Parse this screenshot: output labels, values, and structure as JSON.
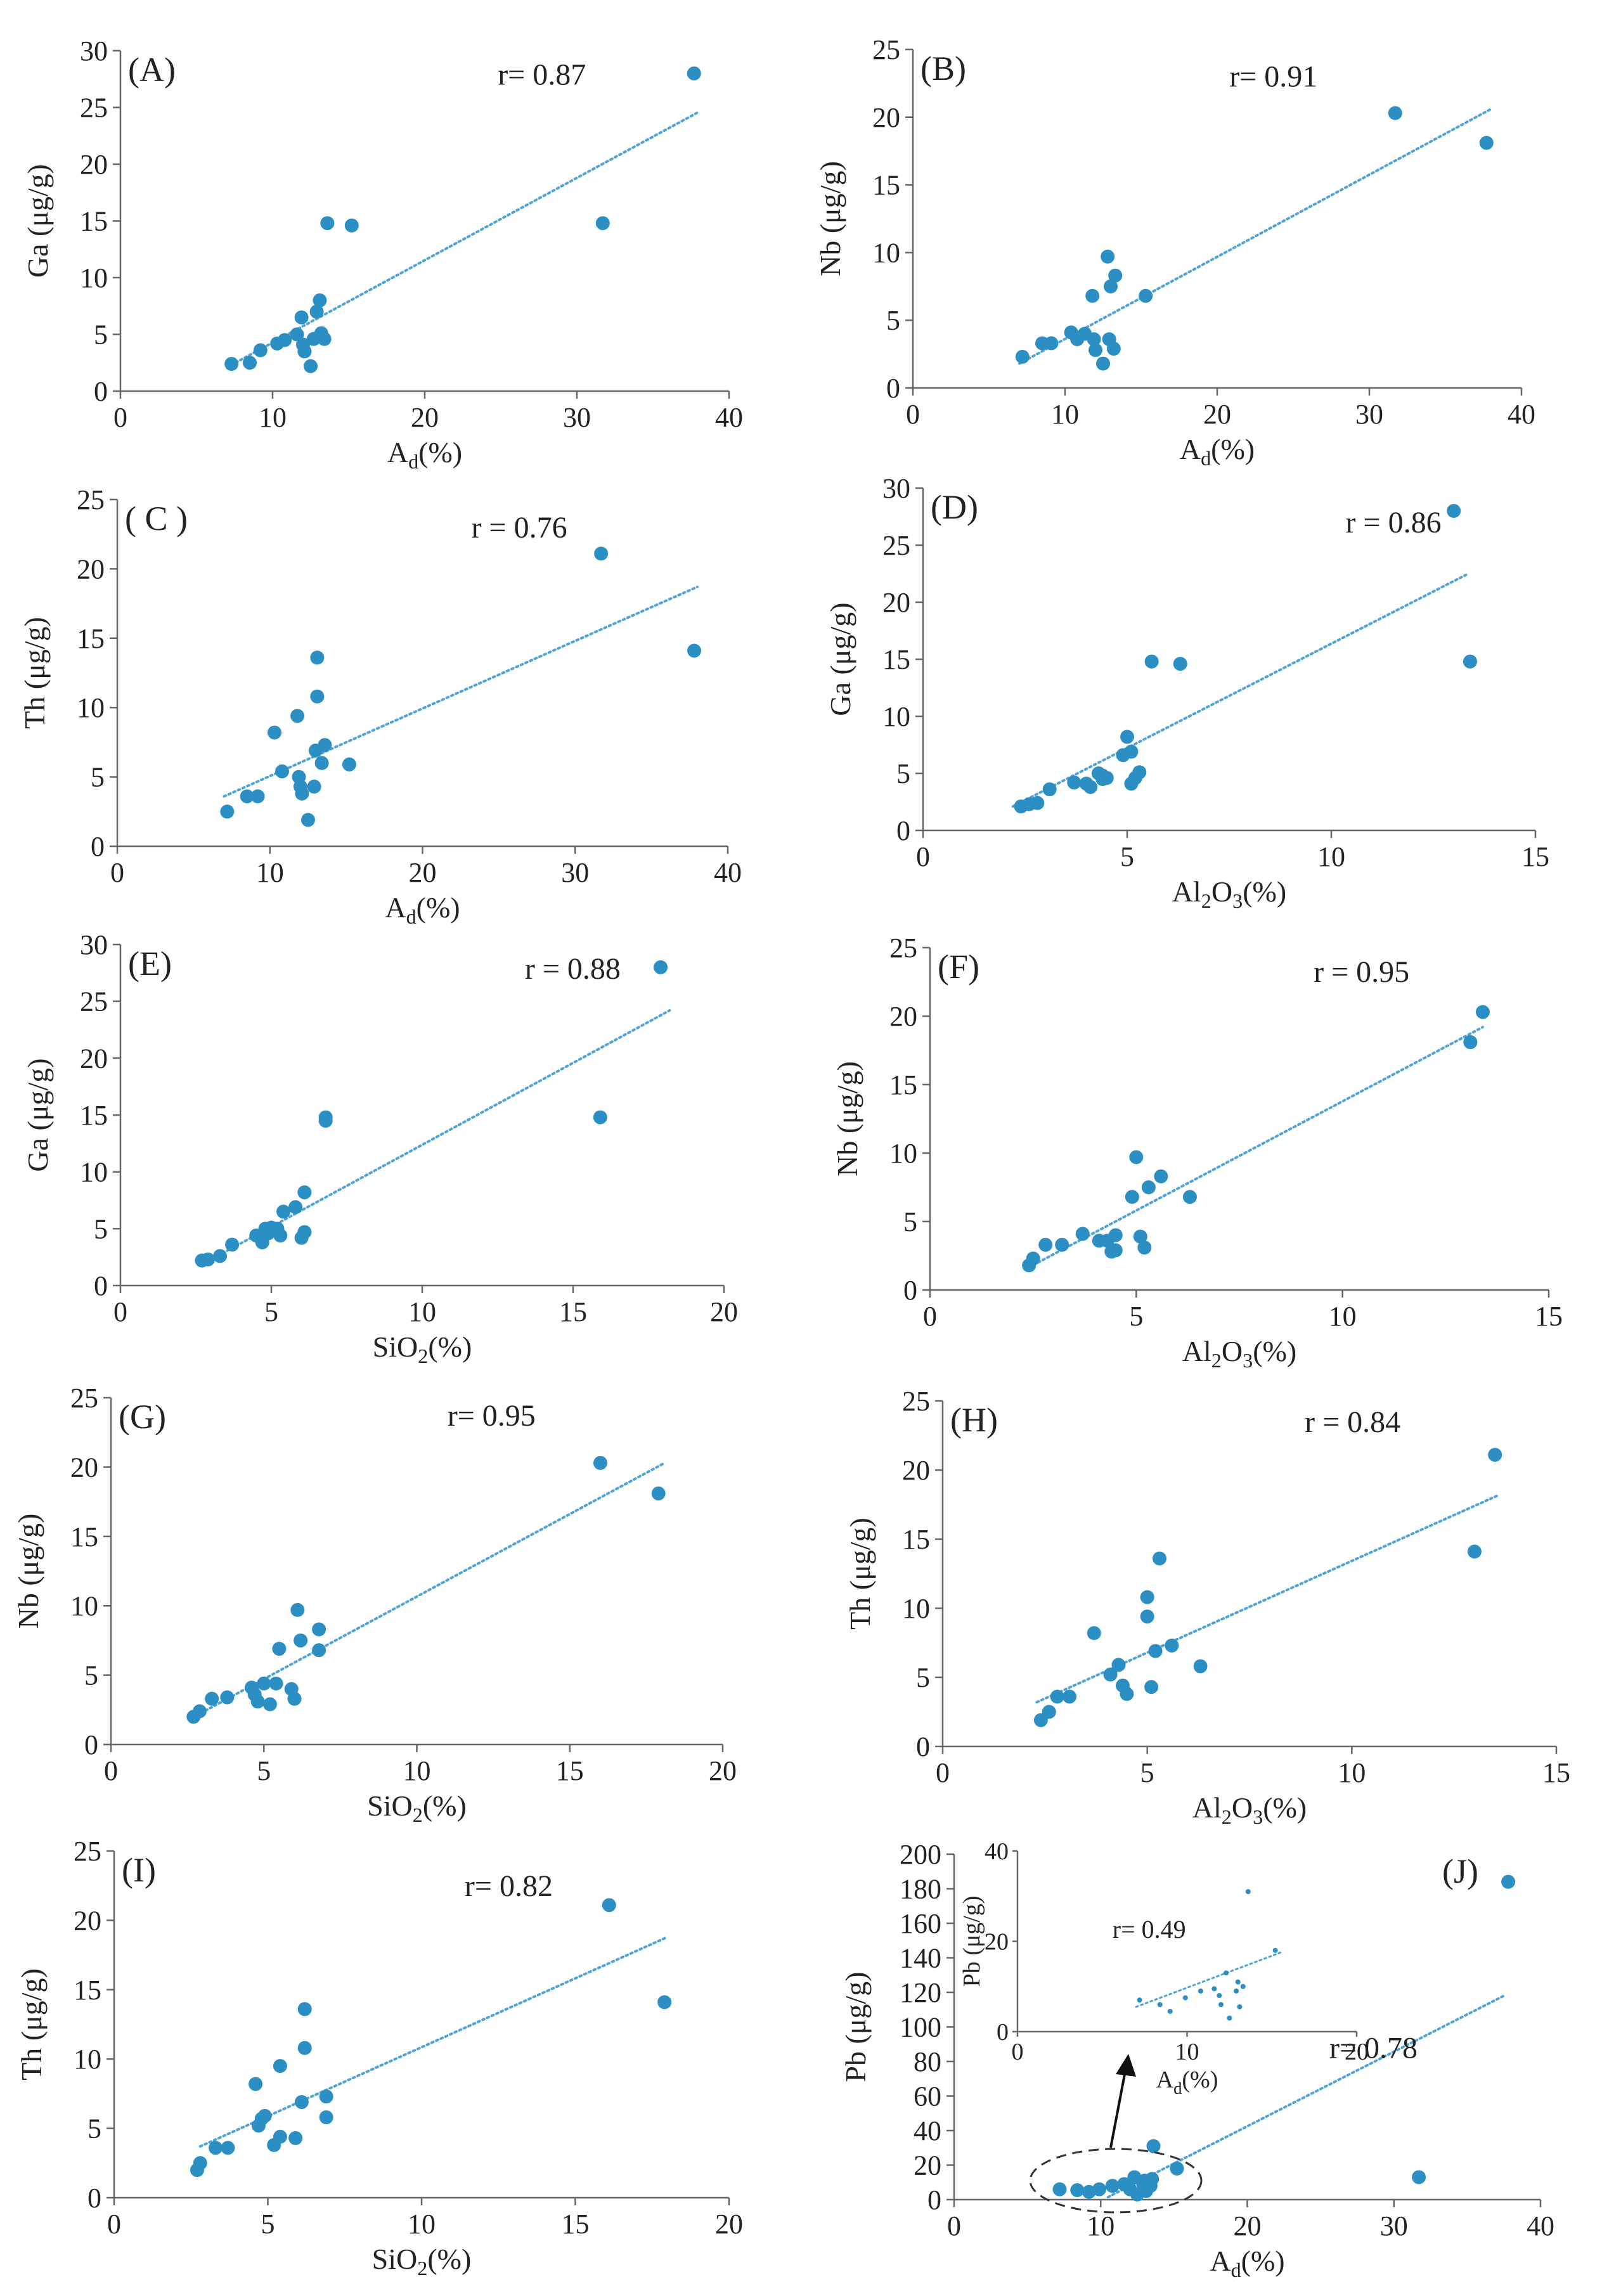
{
  "figure": {
    "caption": ""
  },
  "colors": {
    "point": "#2b8fc4",
    "trend": "#4fa3d6",
    "axis": "#666666",
    "text": "#222222"
  },
  "chart_data": [
    {
      "id": "A",
      "type": "scatter",
      "panel_label": "(A)",
      "xlabel": "Ad(%)",
      "ylabel": "Ga (μg/g)",
      "xlim": [
        0,
        40
      ],
      "ylim": [
        0,
        30
      ],
      "xticks": [
        0,
        10,
        20,
        30,
        40
      ],
      "yticks": [
        0,
        5,
        10,
        15,
        20,
        25,
        30
      ],
      "r_label": "r= 0.87",
      "trend": [
        [
          7,
          2.1
        ],
        [
          38,
          24.6
        ]
      ],
      "points": [
        [
          7.3,
          2.4
        ],
        [
          8.5,
          2.5
        ],
        [
          9.2,
          3.6
        ],
        [
          10.3,
          4.2
        ],
        [
          10.8,
          4.5
        ],
        [
          11.6,
          5.0
        ],
        [
          11.9,
          6.5
        ],
        [
          12.0,
          4.1
        ],
        [
          12.1,
          3.5
        ],
        [
          12.5,
          2.2
        ],
        [
          12.7,
          4.6
        ],
        [
          12.9,
          7.0
        ],
        [
          13.1,
          8.0
        ],
        [
          13.2,
          5.1
        ],
        [
          13.4,
          4.6
        ],
        [
          13.6,
          14.8
        ],
        [
          15.2,
          14.6
        ],
        [
          31.7,
          14.8
        ],
        [
          37.7,
          28.0
        ]
      ]
    },
    {
      "id": "B",
      "type": "scatter",
      "panel_label": "(B)",
      "xlabel": "Ad(%)",
      "ylabel": "Nb (μg/g)",
      "xlim": [
        0,
        40
      ],
      "ylim": [
        0,
        25
      ],
      "xticks": [
        0,
        10,
        20,
        30,
        40
      ],
      "yticks": [
        0,
        5,
        10,
        15,
        20,
        25
      ],
      "r_label": "r= 0.91",
      "trend": [
        [
          7,
          1.8
        ],
        [
          38,
          20.6
        ]
      ],
      "points": [
        [
          7.2,
          2.3
        ],
        [
          8.5,
          3.3
        ],
        [
          9.1,
          3.3
        ],
        [
          10.4,
          4.1
        ],
        [
          10.8,
          3.6
        ],
        [
          11.3,
          4.0
        ],
        [
          11.8,
          6.8
        ],
        [
          11.9,
          3.6
        ],
        [
          12.0,
          2.8
        ],
        [
          12.5,
          1.8
        ],
        [
          12.8,
          9.7
        ],
        [
          12.9,
          3.6
        ],
        [
          13.0,
          7.5
        ],
        [
          13.2,
          2.9
        ],
        [
          13.3,
          8.3
        ],
        [
          15.3,
          6.8
        ],
        [
          31.7,
          20.3
        ],
        [
          37.7,
          18.1
        ]
      ]
    },
    {
      "id": "C",
      "type": "scatter",
      "panel_label": "( C )",
      "xlabel": "Ad(%)",
      "ylabel": "Th (μg/g)",
      "xlim": [
        0,
        40
      ],
      "ylim": [
        0,
        25
      ],
      "xticks": [
        0,
        10,
        20,
        30,
        40
      ],
      "yticks": [
        0,
        5,
        10,
        15,
        20,
        25
      ],
      "r_label": "r = 0.76",
      "trend": [
        [
          7,
          3.6
        ],
        [
          38,
          18.7
        ]
      ],
      "points": [
        [
          7.2,
          2.5
        ],
        [
          8.5,
          3.6
        ],
        [
          9.2,
          3.6
        ],
        [
          10.3,
          8.2
        ],
        [
          10.8,
          5.4
        ],
        [
          11.8,
          9.4
        ],
        [
          11.9,
          5.0
        ],
        [
          12.0,
          4.3
        ],
        [
          12.1,
          3.8
        ],
        [
          12.5,
          1.9
        ],
        [
          12.9,
          4.3
        ],
        [
          13.0,
          6.9
        ],
        [
          13.1,
          13.6
        ],
        [
          13.1,
          10.8
        ],
        [
          13.4,
          6.0
        ],
        [
          13.6,
          7.3
        ],
        [
          15.2,
          5.9
        ],
        [
          31.7,
          21.1
        ],
        [
          37.8,
          14.1
        ]
      ]
    },
    {
      "id": "D",
      "type": "scatter",
      "panel_label": "(D)",
      "xlabel": "Al2O3(%)",
      "ylabel": "Ga (μg/g)",
      "xlim": [
        0,
        15
      ],
      "ylim": [
        0,
        30
      ],
      "xticks": [
        0,
        5,
        10,
        15
      ],
      "yticks": [
        0,
        5,
        10,
        15,
        20,
        25,
        30
      ],
      "r_label": "r = 0.86",
      "trend": [
        [
          2.2,
          2.1
        ],
        [
          13.3,
          22.4
        ]
      ],
      "points": [
        [
          2.4,
          2.1
        ],
        [
          2.6,
          2.3
        ],
        [
          2.8,
          2.4
        ],
        [
          3.1,
          3.6
        ],
        [
          3.7,
          4.2
        ],
        [
          4.0,
          4.1
        ],
        [
          4.1,
          3.8
        ],
        [
          4.3,
          5.0
        ],
        [
          4.4,
          4.5
        ],
        [
          4.4,
          4.8
        ],
        [
          4.5,
          4.6
        ],
        [
          4.9,
          6.6
        ],
        [
          5.0,
          8.2
        ],
        [
          5.1,
          6.9
        ],
        [
          5.1,
          4.1
        ],
        [
          5.2,
          4.6
        ],
        [
          5.3,
          5.1
        ],
        [
          5.6,
          14.8
        ],
        [
          6.3,
          14.6
        ],
        [
          13.0,
          28.0
        ],
        [
          13.4,
          14.8
        ]
      ]
    },
    {
      "id": "E",
      "type": "scatter",
      "panel_label": "(E)",
      "xlabel": "SiO2(%)",
      "ylabel": "Ga (μg/g)",
      "xlim": [
        0,
        20
      ],
      "ylim": [
        0,
        30
      ],
      "xticks": [
        0,
        5,
        10,
        15,
        20
      ],
      "yticks": [
        0,
        5,
        10,
        15,
        20,
        25,
        30
      ],
      "r_label": "r = 0.88",
      "trend": [
        [
          2.8,
          2.0
        ],
        [
          18.2,
          24.2
        ]
      ],
      "points": [
        [
          2.7,
          2.2
        ],
        [
          2.9,
          2.3
        ],
        [
          3.3,
          2.6
        ],
        [
          3.7,
          3.6
        ],
        [
          4.5,
          4.4
        ],
        [
          4.7,
          3.8
        ],
        [
          4.8,
          5.0
        ],
        [
          4.9,
          4.6
        ],
        [
          5.0,
          5.1
        ],
        [
          5.2,
          5.0
        ],
        [
          5.3,
          4.4
        ],
        [
          5.4,
          6.5
        ],
        [
          5.8,
          6.9
        ],
        [
          6.0,
          4.2
        ],
        [
          6.1,
          8.2
        ],
        [
          6.1,
          4.7
        ],
        [
          6.8,
          14.8
        ],
        [
          6.8,
          14.5
        ],
        [
          15.9,
          14.8
        ],
        [
          17.9,
          28.0
        ]
      ]
    },
    {
      "id": "F",
      "type": "scatter",
      "panel_label": "(F)",
      "xlabel": "Al2O3(%)",
      "ylabel": "Nb (μg/g)",
      "xlim": [
        0,
        15
      ],
      "ylim": [
        0,
        25
      ],
      "xticks": [
        0,
        5,
        10,
        15
      ],
      "yticks": [
        0,
        5,
        10,
        15,
        20,
        25
      ],
      "r_label": "r = 0.95",
      "trend": [
        [
          2.3,
          1.5
        ],
        [
          13.4,
          19.2
        ]
      ],
      "points": [
        [
          2.4,
          1.8
        ],
        [
          2.5,
          2.3
        ],
        [
          2.8,
          3.3
        ],
        [
          3.2,
          3.3
        ],
        [
          3.7,
          4.1
        ],
        [
          4.1,
          3.6
        ],
        [
          4.3,
          3.6
        ],
        [
          4.4,
          2.8
        ],
        [
          4.5,
          2.9
        ],
        [
          4.5,
          4.0
        ],
        [
          4.9,
          6.8
        ],
        [
          5.0,
          9.7
        ],
        [
          5.1,
          3.9
        ],
        [
          5.2,
          3.1
        ],
        [
          5.3,
          7.5
        ],
        [
          5.6,
          8.3
        ],
        [
          6.3,
          6.8
        ],
        [
          13.1,
          18.1
        ],
        [
          13.4,
          20.3
        ]
      ]
    },
    {
      "id": "G",
      "type": "scatter",
      "panel_label": "(G)",
      "xlabel": "SiO2(%)",
      "ylabel": "Nb (μg/g)",
      "xlim": [
        0,
        20
      ],
      "ylim": [
        0,
        25
      ],
      "xticks": [
        0,
        5,
        10,
        15,
        20
      ],
      "yticks": [
        0,
        5,
        10,
        15,
        20,
        25
      ],
      "r_label": "r= 0.95",
      "trend": [
        [
          2.8,
          2.1
        ],
        [
          18.1,
          20.3
        ]
      ],
      "points": [
        [
          2.7,
          2.0
        ],
        [
          2.9,
          2.4
        ],
        [
          3.3,
          3.3
        ],
        [
          3.8,
          3.4
        ],
        [
          4.6,
          4.1
        ],
        [
          4.7,
          3.6
        ],
        [
          4.8,
          3.1
        ],
        [
          5.0,
          4.4
        ],
        [
          5.2,
          2.9
        ],
        [
          5.4,
          4.4
        ],
        [
          5.5,
          6.9
        ],
        [
          5.9,
          4.0
        ],
        [
          6.0,
          3.3
        ],
        [
          6.1,
          9.7
        ],
        [
          6.2,
          7.5
        ],
        [
          6.8,
          8.3
        ],
        [
          6.8,
          6.8
        ],
        [
          16.0,
          20.3
        ],
        [
          17.9,
          18.1
        ]
      ]
    },
    {
      "id": "H",
      "type": "scatter",
      "panel_label": "(H)",
      "xlabel": "Al2O3(%)",
      "ylabel": "Th (μg/g)",
      "xlim": [
        0,
        15
      ],
      "ylim": [
        0,
        25
      ],
      "xticks": [
        0,
        5,
        10,
        15
      ],
      "yticks": [
        0,
        5,
        10,
        15,
        20,
        25
      ],
      "r_label": "r = 0.84",
      "trend": [
        [
          2.3,
          3.2
        ],
        [
          13.6,
          18.2
        ]
      ],
      "points": [
        [
          2.4,
          1.9
        ],
        [
          2.6,
          2.5
        ],
        [
          2.8,
          3.6
        ],
        [
          3.1,
          3.6
        ],
        [
          3.7,
          8.2
        ],
        [
          4.1,
          5.2
        ],
        [
          4.3,
          5.9
        ],
        [
          4.4,
          4.4
        ],
        [
          4.5,
          3.8
        ],
        [
          5.0,
          10.8
        ],
        [
          5.0,
          9.4
        ],
        [
          5.1,
          4.3
        ],
        [
          5.2,
          6.9
        ],
        [
          5.3,
          13.6
        ],
        [
          5.6,
          7.3
        ],
        [
          6.3,
          5.8
        ],
        [
          13.0,
          14.1
        ],
        [
          13.5,
          21.1
        ]
      ]
    },
    {
      "id": "I",
      "type": "scatter",
      "panel_label": "(I)",
      "xlabel": "SiO2(%)",
      "ylabel": "Th (μg/g)",
      "xlim": [
        0,
        20
      ],
      "ylim": [
        0,
        25
      ],
      "xticks": [
        0,
        5,
        10,
        15,
        20
      ],
      "yticks": [
        0,
        5,
        10,
        15,
        20,
        25
      ],
      "r_label": "r= 0.82",
      "trend": [
        [
          2.8,
          3.7
        ],
        [
          18.0,
          18.8
        ]
      ],
      "points": [
        [
          2.7,
          2.0
        ],
        [
          2.8,
          2.5
        ],
        [
          3.3,
          3.6
        ],
        [
          3.7,
          3.6
        ],
        [
          4.6,
          8.2
        ],
        [
          4.7,
          5.2
        ],
        [
          4.8,
          5.7
        ],
        [
          4.9,
          5.9
        ],
        [
          5.2,
          3.8
        ],
        [
          5.4,
          9.5
        ],
        [
          5.4,
          4.4
        ],
        [
          5.9,
          4.3
        ],
        [
          6.1,
          6.9
        ],
        [
          6.2,
          10.8
        ],
        [
          6.2,
          13.6
        ],
        [
          6.9,
          7.3
        ],
        [
          6.9,
          5.8
        ],
        [
          16.1,
          21.1
        ],
        [
          17.9,
          14.1
        ]
      ]
    },
    {
      "id": "J",
      "type": "scatter",
      "panel_label": "(J)",
      "xlabel": "Ad(%)",
      "ylabel": "Pb (μg/g)",
      "xlim": [
        0,
        40
      ],
      "ylim": [
        0,
        200
      ],
      "xticks": [
        0,
        10,
        20,
        30,
        40
      ],
      "yticks": [
        0,
        20,
        40,
        60,
        80,
        100,
        120,
        140,
        160,
        180,
        200
      ],
      "r_label": "r= 0.78",
      "trend": [
        [
          10.5,
          1.5
        ],
        [
          37.5,
          118.0
        ]
      ],
      "points": [
        [
          7.2,
          6.0
        ],
        [
          8.4,
          5.5
        ],
        [
          9.2,
          4.5
        ],
        [
          9.9,
          6.0
        ],
        [
          10.8,
          8.0
        ],
        [
          11.6,
          9.0
        ],
        [
          11.9,
          8.0
        ],
        [
          12.0,
          6.0
        ],
        [
          12.3,
          13.0
        ],
        [
          12.5,
          3.0
        ],
        [
          12.9,
          9.0
        ],
        [
          13.0,
          11.0
        ],
        [
          13.1,
          5.0
        ],
        [
          13.4,
          8.0
        ],
        [
          13.5,
          12.0
        ],
        [
          13.6,
          31.0
        ],
        [
          15.2,
          18.0
        ],
        [
          31.7,
          13.0
        ],
        [
          37.8,
          184.0
        ]
      ],
      "inset": {
        "xlabel": "Ad(%)",
        "ylabel": "Pb (μg/g)",
        "xlim": [
          0,
          20
        ],
        "ylim": [
          0,
          40
        ],
        "xticks": [
          0,
          10,
          20
        ],
        "yticks": [
          0,
          20,
          40
        ],
        "r_label": "r= 0.49",
        "trend": [
          [
            7,
            5.5
          ],
          [
            15.5,
            17.5
          ]
        ],
        "points": [
          [
            7.2,
            7.0
          ],
          [
            8.4,
            6.0
          ],
          [
            9.0,
            4.5
          ],
          [
            9.9,
            7.5
          ],
          [
            10.8,
            9.0
          ],
          [
            11.6,
            9.5
          ],
          [
            11.9,
            8.0
          ],
          [
            12.0,
            6.0
          ],
          [
            12.3,
            13.0
          ],
          [
            12.5,
            3.0
          ],
          [
            12.9,
            9.0
          ],
          [
            13.0,
            11.0
          ],
          [
            13.1,
            5.5
          ],
          [
            13.3,
            10.0
          ],
          [
            13.6,
            31.0
          ],
          [
            15.2,
            18.0
          ]
        ]
      }
    }
  ]
}
